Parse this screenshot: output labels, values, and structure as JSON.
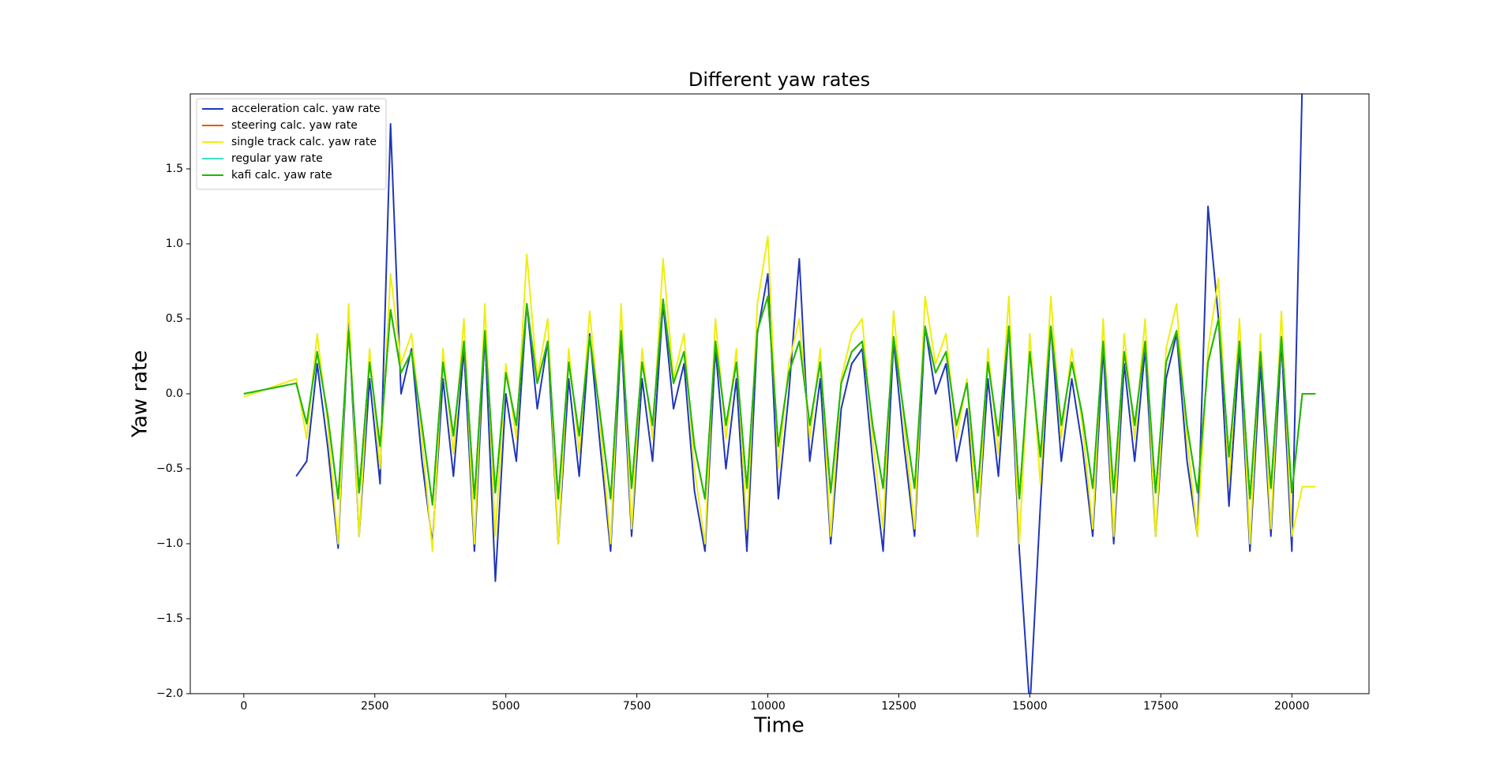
{
  "chart_data": {
    "type": "line",
    "title": "Different yaw rates",
    "xlabel": "Time",
    "ylabel": "Yaw rate",
    "xlim": [
      -1022,
      21472
    ],
    "ylim": [
      -2,
      2
    ],
    "xticks": [
      0,
      2500,
      5000,
      7500,
      10000,
      12500,
      15000,
      17500,
      20000
    ],
    "yticks": [
      {
        "value": -2,
        "label": "−2.0"
      },
      {
        "value": -1.5,
        "label": "−1.5"
      },
      {
        "value": -1,
        "label": "−1.0"
      },
      {
        "value": -0.5,
        "label": "−0.5"
      },
      {
        "value": 0,
        "label": "0.0"
      },
      0.5,
      {
        "value": 1,
        "label": "1.0"
      },
      1.5
    ],
    "legend": "upper left",
    "x": [
      0,
      1000,
      1200,
      1400,
      1600,
      1800,
      2000,
      2200,
      2400,
      2600,
      2800,
      3000,
      3200,
      3400,
      3600,
      3800,
      4000,
      4200,
      4400,
      4600,
      4800,
      5000,
      5200,
      5400,
      5600,
      5800,
      6000,
      6200,
      6400,
      6600,
      6800,
      7000,
      7200,
      7400,
      7600,
      7800,
      8000,
      8200,
      8400,
      8600,
      8800,
      9000,
      9200,
      9400,
      9600,
      9800,
      10000,
      10200,
      10400,
      10600,
      10800,
      11000,
      11200,
      11400,
      11600,
      11800,
      12000,
      12200,
      12400,
      12600,
      12800,
      13000,
      13200,
      13400,
      13600,
      13800,
      14000,
      14200,
      14400,
      14600,
      14800,
      15000,
      15200,
      15400,
      15600,
      15800,
      16000,
      16200,
      16400,
      16600,
      16800,
      17000,
      17200,
      17400,
      17600,
      17800,
      18000,
      18200,
      18400,
      18600,
      18800,
      19000,
      19200,
      19400,
      19600,
      19800,
      20000,
      20200,
      20450
    ],
    "series": [
      {
        "name": "acceleration calc. yaw rate",
        "color": "#2036b8",
        "values": [
          null,
          -0.55,
          -0.45,
          0.2,
          -0.35,
          -1.03,
          0.5,
          -0.95,
          0.1,
          -0.6,
          1.8,
          0.0,
          0.3,
          -0.45,
          -1.0,
          0.1,
          -0.55,
          0.3,
          -1.05,
          0.4,
          -1.25,
          0.0,
          -0.45,
          0.6,
          -0.1,
          0.35,
          -1.0,
          0.1,
          -0.55,
          0.4,
          -0.35,
          -1.05,
          0.4,
          -0.95,
          0.1,
          -0.45,
          0.6,
          -0.1,
          0.2,
          -0.65,
          -1.05,
          0.3,
          -0.5,
          0.1,
          -1.05,
          0.4,
          0.8,
          -0.7,
          0.0,
          0.9,
          -0.45,
          0.1,
          -1.0,
          -0.1,
          0.2,
          0.3,
          -0.45,
          -1.05,
          0.35,
          -0.35,
          -0.95,
          0.45,
          0.0,
          0.2,
          -0.45,
          -0.1,
          -0.95,
          0.1,
          -0.55,
          0.45,
          -1.05,
          -2.1,
          -0.75,
          0.45,
          -0.45,
          0.1,
          -0.35,
          -0.95,
          0.3,
          -1.0,
          0.2,
          -0.45,
          0.3,
          -0.95,
          0.1,
          0.4,
          -0.45,
          -0.95,
          1.25,
          0.5,
          -0.75,
          0.3,
          -1.05,
          0.2,
          -0.95,
          0.35,
          -1.05,
          2.1,
          null
        ]
      },
      {
        "name": "steering calc. yaw rate",
        "color": "#e05a00",
        "values": [
          0,
          0.07,
          -0.2,
          0.28,
          -0.14,
          -0.7,
          0.42,
          -0.66,
          0.21,
          -0.35,
          0.56,
          0.14,
          0.28,
          -0.21,
          -0.74,
          0.21,
          -0.28,
          0.35,
          -0.7,
          0.42,
          -0.66,
          0.14,
          -0.21,
          0.6,
          0.07,
          0.35,
          -0.7,
          0.21,
          -0.28,
          0.38,
          -0.14,
          -0.7,
          0.42,
          -0.63,
          0.21,
          -0.21,
          0.63,
          0.07,
          0.28,
          -0.35,
          -0.7,
          0.35,
          -0.21,
          0.21,
          -0.63,
          0.42,
          0.65,
          -0.35,
          0.14,
          0.35,
          -0.21,
          0.21,
          -0.66,
          0.07,
          0.28,
          0.35,
          -0.21,
          -0.63,
          0.38,
          -0.14,
          -0.63,
          0.45,
          0.14,
          0.28,
          -0.21,
          0.07,
          -0.66,
          0.21,
          -0.28,
          0.45,
          -0.7,
          0.28,
          -0.42,
          0.45,
          -0.21,
          0.21,
          -0.14,
          -0.63,
          0.35,
          -0.66,
          0.28,
          -0.21,
          0.35,
          -0.66,
          0.21,
          0.42,
          -0.21,
          -0.66,
          0.21,
          0.5,
          -0.42,
          0.35,
          -0.7,
          0.28,
          -0.63,
          0.38,
          -0.66,
          0,
          0
        ]
      },
      {
        "name": "single track calc. yaw rate",
        "color": "#eeee10",
        "values": [
          -0.02,
          0.1,
          -0.3,
          0.4,
          -0.2,
          -1.0,
          0.6,
          -0.95,
          0.3,
          -0.5,
          0.8,
          0.2,
          0.4,
          -0.3,
          -1.05,
          0.3,
          -0.4,
          0.5,
          -1.0,
          0.6,
          -0.95,
          0.2,
          -0.3,
          0.93,
          0.1,
          0.5,
          -1.0,
          0.3,
          -0.4,
          0.55,
          -0.2,
          -1.0,
          0.6,
          -0.9,
          0.3,
          -0.3,
          0.9,
          0.1,
          0.4,
          -0.5,
          -1.0,
          0.5,
          -0.3,
          0.3,
          -0.9,
          0.6,
          1.05,
          -0.5,
          0.2,
          0.5,
          -0.3,
          0.3,
          -0.95,
          0.1,
          0.4,
          0.5,
          -0.3,
          -0.9,
          0.55,
          -0.2,
          -0.9,
          0.65,
          0.2,
          0.4,
          -0.3,
          0.1,
          -0.95,
          0.3,
          -0.4,
          0.65,
          -1.0,
          0.4,
          -0.6,
          0.65,
          -0.3,
          0.3,
          -0.2,
          -0.9,
          0.5,
          -0.95,
          0.4,
          -0.3,
          0.5,
          -0.95,
          0.3,
          0.6,
          -0.3,
          -0.95,
          0.3,
          0.77,
          -0.6,
          0.5,
          -1.0,
          0.4,
          -0.9,
          0.55,
          -0.95,
          -0.62,
          -0.62
        ]
      },
      {
        "name": "regular yaw rate",
        "color": "#40e0c0",
        "values": [
          0,
          0.07,
          -0.2,
          0.28,
          -0.14,
          -0.7,
          0.42,
          -0.66,
          0.21,
          -0.35,
          0.56,
          0.14,
          0.28,
          -0.21,
          -0.74,
          0.21,
          -0.28,
          0.35,
          -0.7,
          0.42,
          -0.66,
          0.14,
          -0.21,
          0.6,
          0.07,
          0.35,
          -0.7,
          0.21,
          -0.28,
          0.38,
          -0.14,
          -0.7,
          0.42,
          -0.63,
          0.21,
          -0.21,
          0.63,
          0.07,
          0.28,
          -0.35,
          -0.7,
          0.35,
          -0.21,
          0.21,
          -0.63,
          0.42,
          0.65,
          -0.35,
          0.14,
          0.35,
          -0.21,
          0.21,
          -0.66,
          0.07,
          0.28,
          0.35,
          -0.21,
          -0.63,
          0.38,
          -0.14,
          -0.63,
          0.45,
          0.14,
          0.28,
          -0.21,
          0.07,
          -0.66,
          0.21,
          -0.28,
          0.45,
          -0.7,
          0.28,
          -0.42,
          0.45,
          -0.21,
          0.21,
          -0.14,
          -0.63,
          0.35,
          -0.66,
          0.28,
          -0.21,
          0.35,
          -0.66,
          0.21,
          0.42,
          -0.21,
          -0.66,
          0.21,
          0.5,
          -0.42,
          0.35,
          -0.7,
          0.28,
          -0.63,
          0.38,
          -0.66,
          0,
          0
        ]
      },
      {
        "name": "kafi calc. yaw rate",
        "color": "#22b800",
        "values": [
          0,
          0.07,
          -0.2,
          0.28,
          -0.14,
          -0.7,
          0.42,
          -0.66,
          0.21,
          -0.35,
          0.56,
          0.14,
          0.28,
          -0.21,
          -0.74,
          0.21,
          -0.28,
          0.35,
          -0.7,
          0.42,
          -0.66,
          0.14,
          -0.21,
          0.6,
          0.07,
          0.35,
          -0.7,
          0.21,
          -0.28,
          0.38,
          -0.14,
          -0.7,
          0.42,
          -0.63,
          0.21,
          -0.21,
          0.63,
          0.07,
          0.28,
          -0.35,
          -0.7,
          0.35,
          -0.21,
          0.21,
          -0.63,
          0.42,
          0.65,
          -0.35,
          0.14,
          0.35,
          -0.21,
          0.21,
          -0.66,
          0.07,
          0.28,
          0.35,
          -0.21,
          -0.63,
          0.38,
          -0.14,
          -0.63,
          0.45,
          0.14,
          0.28,
          -0.21,
          0.07,
          -0.66,
          0.21,
          -0.28,
          0.45,
          -0.7,
          0.28,
          -0.42,
          0.45,
          -0.21,
          0.21,
          -0.14,
          -0.63,
          0.35,
          -0.66,
          0.28,
          -0.21,
          0.35,
          -0.66,
          0.21,
          0.42,
          -0.21,
          -0.66,
          0.21,
          0.5,
          -0.42,
          0.35,
          -0.7,
          0.28,
          -0.63,
          0.38,
          -0.66,
          0,
          0
        ]
      }
    ]
  }
}
